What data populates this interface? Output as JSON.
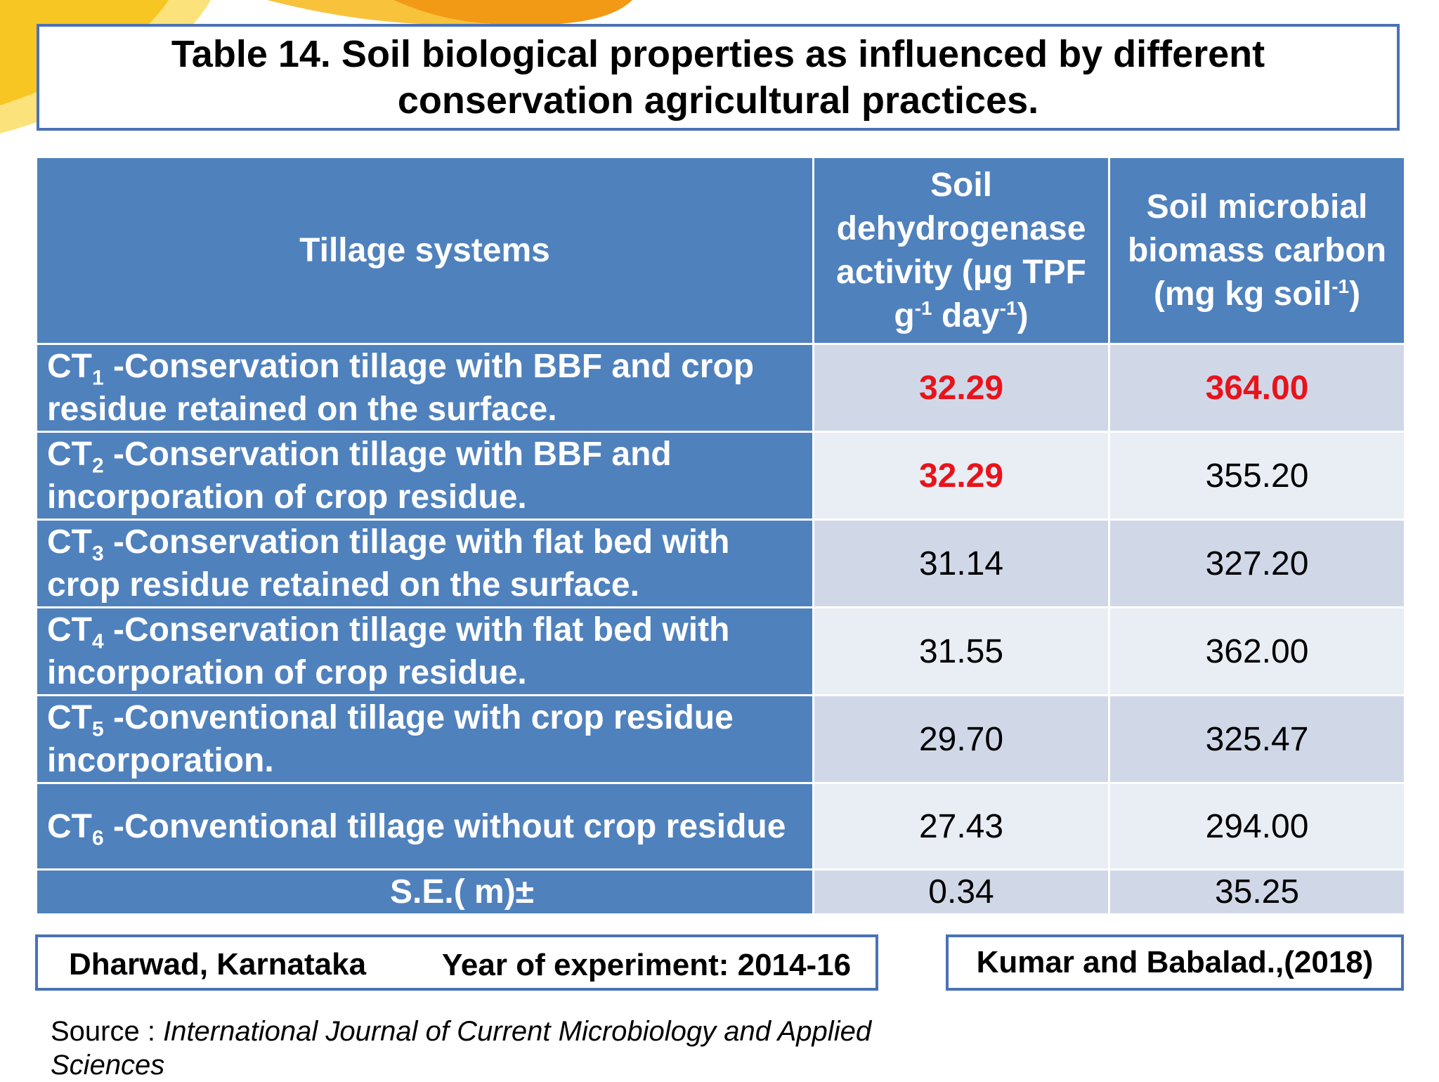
{
  "title": {
    "line1": "Table 14.  Soil biological properties as influenced by different",
    "line2": "conservation agricultural practices."
  },
  "table": {
    "headers": {
      "col1": "Tillage  systems",
      "col2": {
        "text": "Soil dehydrogenase activity (µg TPF g",
        "sup1": "-1",
        "mid": " day",
        "sup2": "-1",
        "end": ")"
      },
      "col3": {
        "text": "Soil microbial biomass carbon (mg kg soil",
        "sup1": "-1",
        "end": ")"
      }
    },
    "rows": [
      {
        "prefix": "CT",
        "sub": "1",
        "text": " -Conservation tillage with BBF and crop residue retained on the surface.",
        "dha": "32.29",
        "mbc": "364.00",
        "dha_hl": true,
        "mbc_hl": true
      },
      {
        "prefix": "CT",
        "sub": "2",
        "text": " -Conservation tillage with BBF and incorporation of crop residue.",
        "dha": "32.29",
        "mbc": "355.20",
        "dha_hl": true,
        "mbc_hl": false
      },
      {
        "prefix": "CT",
        "sub": "3",
        "text": " -Conservation tillage with flat bed with crop residue retained on the surface.",
        "dha": "31.14",
        "mbc": "327.20",
        "dha_hl": false,
        "mbc_hl": false
      },
      {
        "prefix": "CT",
        "sub": "4",
        "text": " -Conservation tillage with flat bed with incorporation of crop residue.",
        "dha": "31.55",
        "mbc": "362.00",
        "dha_hl": false,
        "mbc_hl": false
      },
      {
        "prefix": "CT",
        "sub": "5",
        "text": " -Conventional tillage with crop residue incorporation.",
        "dha": "29.70",
        "mbc": "325.47",
        "dha_hl": false,
        "mbc_hl": false
      },
      {
        "prefix": "CT",
        "sub": "6",
        "text": " -Conventional tillage without crop residue",
        "dha": "27.43",
        "mbc": "294.00",
        "dha_hl": false,
        "mbc_hl": false
      }
    ],
    "se": {
      "label": "S.E.( m)±",
      "dha": "0.34",
      "mbc": "35.25"
    }
  },
  "footer": {
    "location": "Dharwad, Karnataka",
    "year": "Year of experiment: 2014-16",
    "citation": "Kumar and Babalad.,(2018)"
  },
  "source": {
    "label": "Source : ",
    "journal": "International Journal of Current Microbiology and Applied Sciences"
  },
  "colors": {
    "header_blue": "#4f81bd",
    "highlight_red": "#e8131b",
    "row_odd": "#d0d8e8",
    "row_even": "#e9edf4"
  }
}
